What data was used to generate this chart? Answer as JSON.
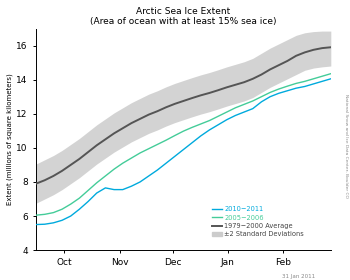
{
  "title": "Arctic Sea Ice Extent",
  "subtitle": "(Area of ocean with at least 15% sea ice)",
  "ylabel": "Extent (millions of square kilometers)",
  "xlabel_ticks": [
    "Oct",
    "Nov",
    "Dec",
    "Jan",
    "Feb"
  ],
  "ylim": [
    4,
    17
  ],
  "yticks": [
    4,
    6,
    8,
    10,
    12,
    14,
    16
  ],
  "watermark": "31 Jan 2011",
  "side_label": "National Snow and Ice Data Center, Boulder CO",
  "legend": {
    "line1_label": "2010−2011",
    "line1_color": "#00AADD",
    "line2_label": "2005−2006",
    "line2_color": "#44CC99",
    "line3_label": "1979−2000 Average",
    "line3_color": "#555555",
    "shade_label": "±2 Standard Deviations",
    "shade_color": "#cccccc"
  },
  "avg_y": [
    7.9,
    8.1,
    8.35,
    8.65,
    9.0,
    9.35,
    9.75,
    10.15,
    10.5,
    10.85,
    11.15,
    11.45,
    11.7,
    11.95,
    12.15,
    12.38,
    12.58,
    12.75,
    12.92,
    13.08,
    13.22,
    13.38,
    13.55,
    13.7,
    13.85,
    14.05,
    14.3,
    14.6,
    14.85,
    15.1,
    15.4,
    15.6,
    15.75,
    15.85,
    15.9
  ],
  "std_upper": [
    9.05,
    9.3,
    9.55,
    9.85,
    10.2,
    10.55,
    10.95,
    11.35,
    11.7,
    12.05,
    12.35,
    12.65,
    12.9,
    13.15,
    13.35,
    13.58,
    13.78,
    13.95,
    14.12,
    14.28,
    14.42,
    14.58,
    14.75,
    14.9,
    15.05,
    15.25,
    15.55,
    15.85,
    16.1,
    16.35,
    16.6,
    16.75,
    16.82,
    16.85,
    16.85
  ],
  "std_lower": [
    6.75,
    7.0,
    7.25,
    7.55,
    7.9,
    8.25,
    8.65,
    9.05,
    9.4,
    9.75,
    10.05,
    10.35,
    10.6,
    10.85,
    11.05,
    11.28,
    11.48,
    11.65,
    11.82,
    11.98,
    12.12,
    12.28,
    12.45,
    12.6,
    12.75,
    12.95,
    13.25,
    13.55,
    13.8,
    14.05,
    14.3,
    14.55,
    14.68,
    14.75,
    14.8
  ],
  "line2010_y": [
    5.5,
    5.52,
    5.6,
    5.75,
    6.0,
    6.4,
    6.85,
    7.35,
    7.65,
    7.55,
    7.55,
    7.75,
    8.0,
    8.35,
    8.7,
    9.1,
    9.5,
    9.9,
    10.3,
    10.7,
    11.05,
    11.35,
    11.65,
    11.9,
    12.1,
    12.3,
    12.7,
    13.0,
    13.2,
    13.35,
    13.5,
    13.6,
    13.75,
    13.9,
    14.05
  ],
  "line2005_y": [
    6.05,
    6.1,
    6.2,
    6.4,
    6.7,
    7.05,
    7.5,
    7.95,
    8.35,
    8.75,
    9.1,
    9.4,
    9.7,
    9.95,
    10.2,
    10.45,
    10.72,
    10.98,
    11.2,
    11.4,
    11.6,
    11.85,
    12.1,
    12.35,
    12.55,
    12.75,
    13.0,
    13.25,
    13.45,
    13.62,
    13.78,
    13.9,
    14.05,
    14.2,
    14.35
  ],
  "n_points": 35
}
